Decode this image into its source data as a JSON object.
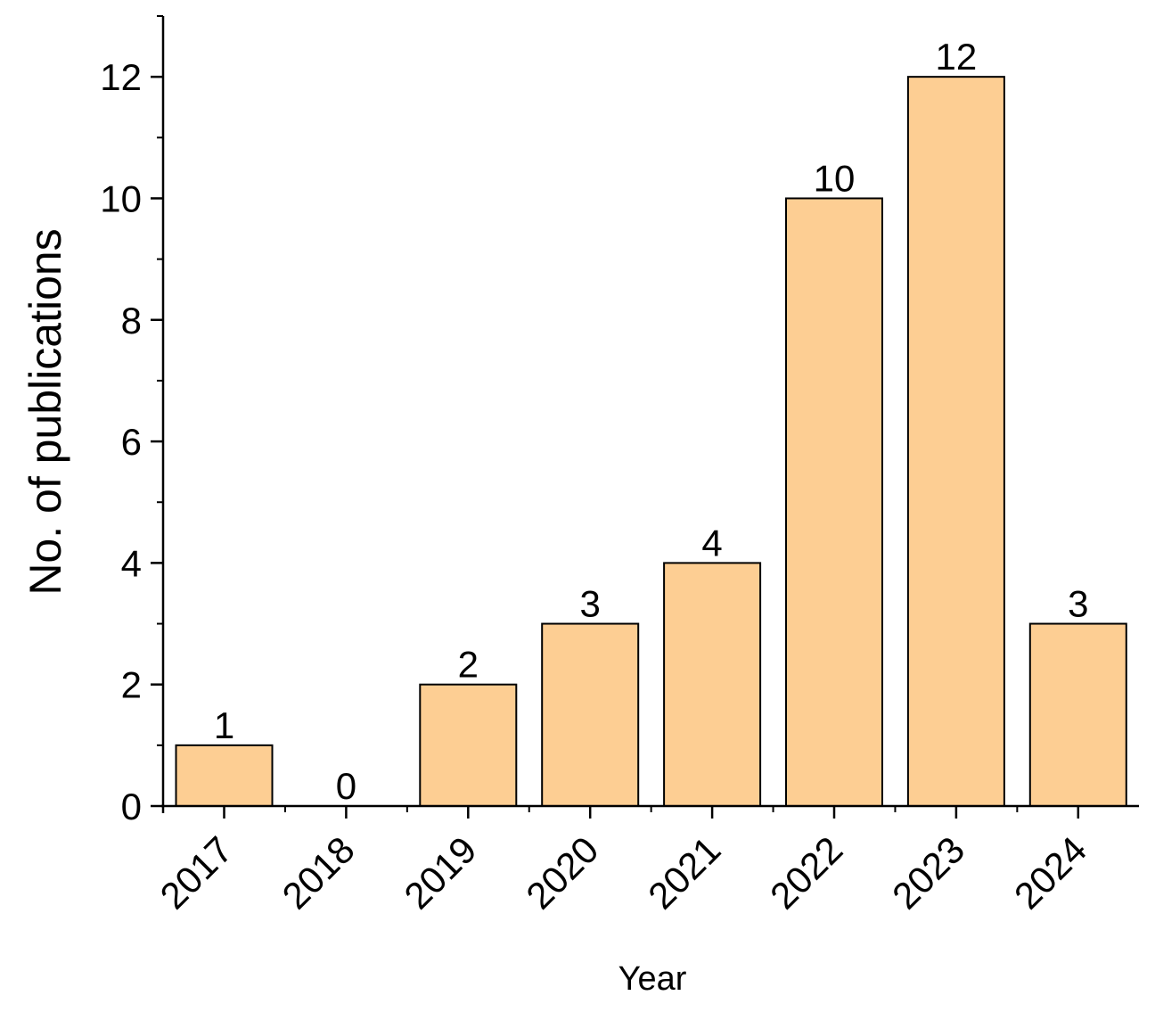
{
  "chart_data": {
    "type": "bar",
    "title": "",
    "xlabel": "Year",
    "ylabel": "No. of publications",
    "categories": [
      "2017",
      "2018",
      "2019",
      "2020",
      "2021",
      "2022",
      "2023",
      "2024"
    ],
    "values": [
      1,
      0,
      2,
      3,
      4,
      10,
      12,
      3
    ],
    "data_labels": [
      "1",
      "0",
      "2",
      "3",
      "4",
      "10",
      "12",
      "3"
    ],
    "ylim": [
      0,
      13
    ],
    "yticks": [
      0,
      2,
      4,
      6,
      8,
      10,
      12
    ],
    "ytick_labels": [
      "0",
      "2",
      "4",
      "6",
      "8",
      "10",
      "12"
    ],
    "minor_yticks": [
      1,
      3,
      5,
      7,
      9,
      11,
      13
    ],
    "grid": false,
    "legend": "none",
    "x_tick_label_rotation_deg": 45,
    "bar_color": "#FDCE93",
    "bar_edge_color": "#000000"
  }
}
